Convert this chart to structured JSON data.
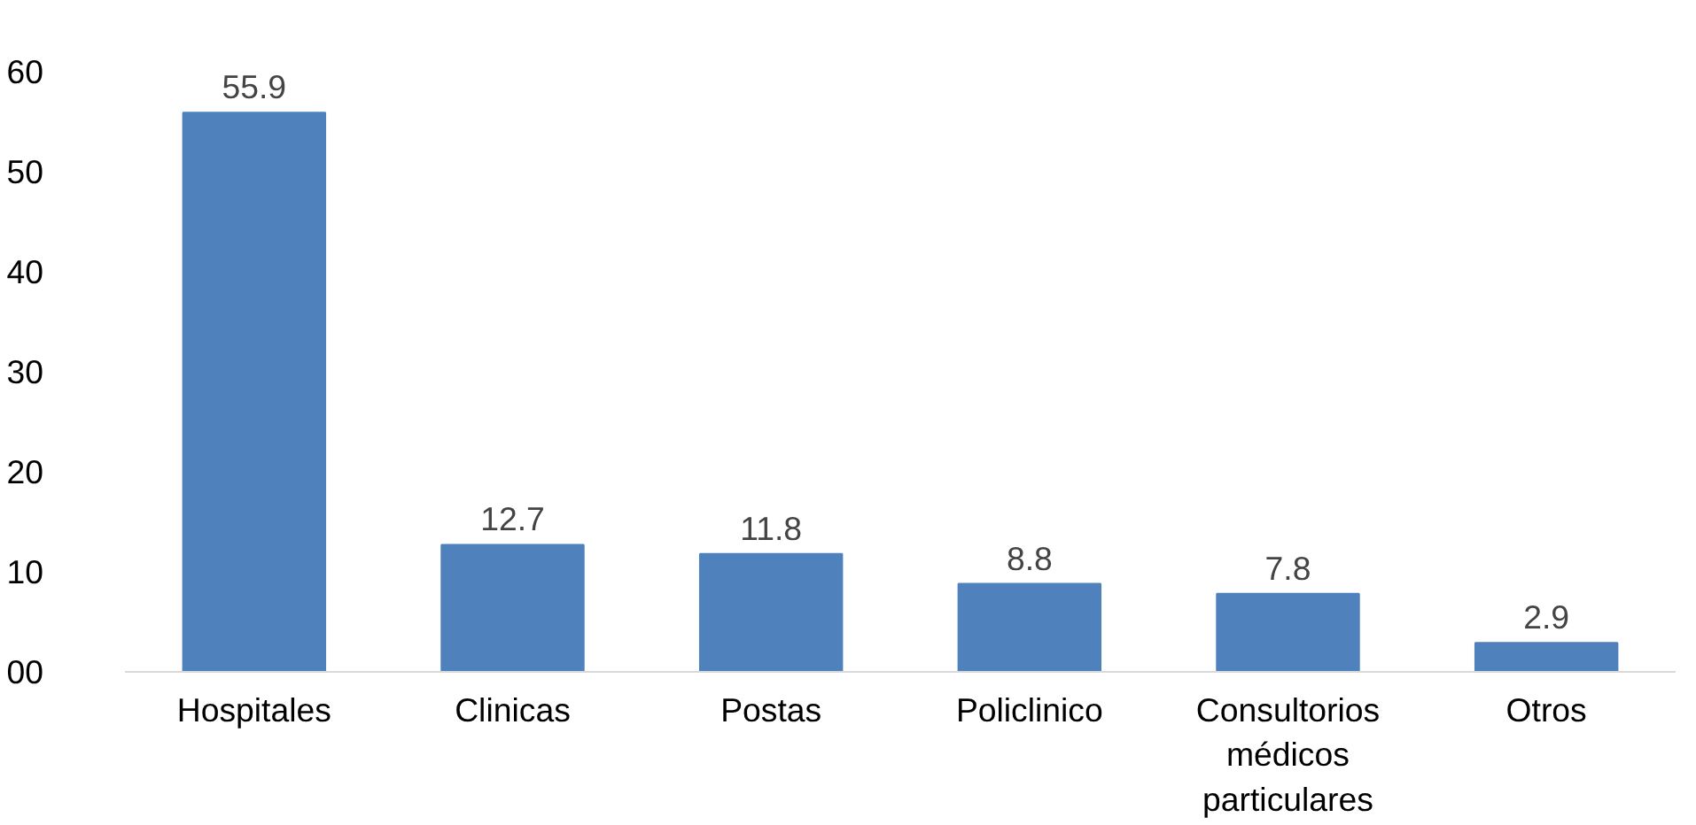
{
  "chart_data": {
    "type": "bar",
    "categories": [
      "Hospitales",
      "Clinicas",
      "Postas",
      "Policlinico",
      "Consultorios\nmédicos\nparticulares",
      "Otros"
    ],
    "values": [
      55.9,
      12.7,
      11.8,
      8.8,
      7.8,
      2.9
    ],
    "color": "#4f81bd",
    "data_labels": true,
    "ylim": [
      0,
      60
    ],
    "yticks": [
      {
        "value": 0,
        "label": "00"
      },
      10,
      20,
      30,
      40,
      50,
      60
    ],
    "grid": false
  }
}
